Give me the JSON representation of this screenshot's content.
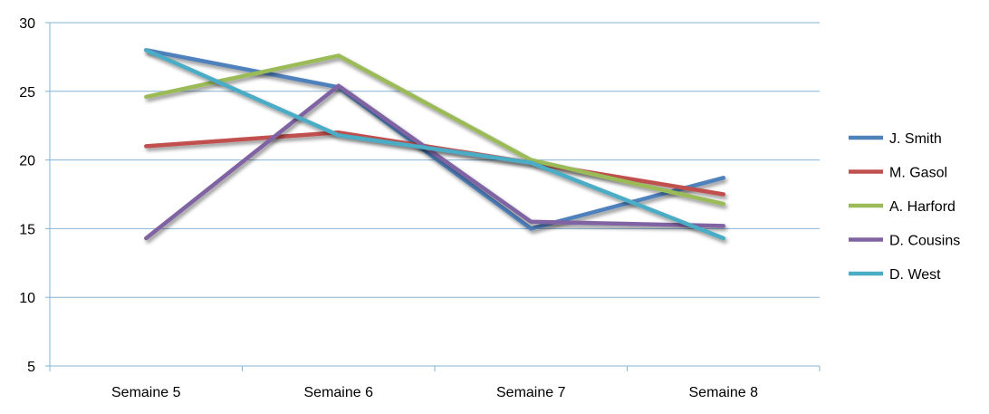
{
  "chart_data": {
    "type": "line",
    "title": "",
    "xlabel": "",
    "ylabel": "",
    "categories": [
      "Semaine 5",
      "Semaine 6",
      "Semaine 7",
      "Semaine 8"
    ],
    "ylim": [
      5,
      30
    ],
    "yticks": [
      5,
      10,
      15,
      20,
      25,
      30
    ],
    "grid": true,
    "legend_position": "right",
    "series": [
      {
        "name": "J. Smith",
        "color": "#4F81BD",
        "values": [
          28,
          25.3,
          15,
          18.7
        ]
      },
      {
        "name": "M. Gasol",
        "color": "#C0504D",
        "values": [
          21,
          22,
          19.8,
          17.5
        ]
      },
      {
        "name": "A. Harford",
        "color": "#9BBB59",
        "values": [
          24.6,
          27.6,
          20,
          16.8
        ]
      },
      {
        "name": "D. Cousins",
        "color": "#8064A2",
        "values": [
          14.3,
          25.4,
          15.5,
          15.2
        ]
      },
      {
        "name": "D. West",
        "color": "#4BACC6",
        "values": [
          28,
          21.8,
          19.8,
          14.3
        ]
      }
    ]
  }
}
